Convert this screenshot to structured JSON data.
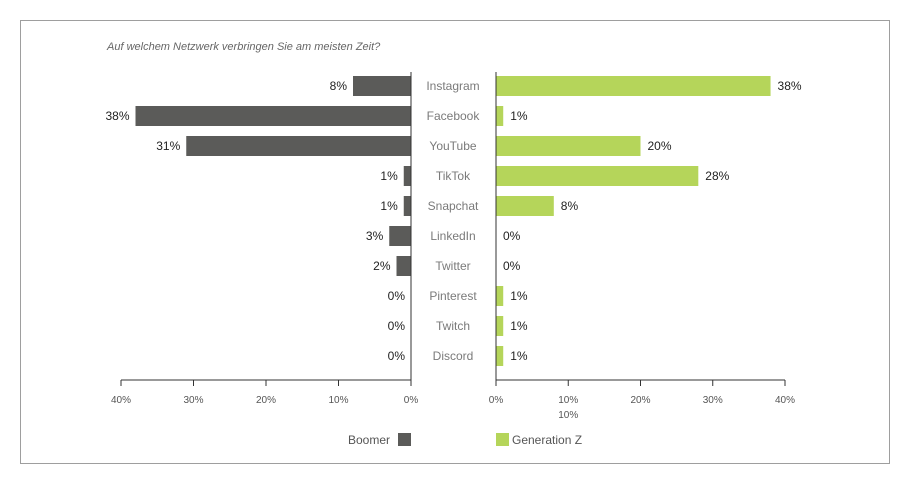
{
  "chart_data": {
    "type": "bar",
    "orientation": "horizontal",
    "layout": "butterfly",
    "title": "Auf welchem Netzwerk verbringen Sie am meisten Zeit?",
    "categories": [
      "Instagram",
      "Facebook",
      "YouTube",
      "TikTok",
      "Snapchat",
      "LinkedIn",
      "Twitter",
      "Pinterest",
      "Twitch",
      "Discord"
    ],
    "series": [
      {
        "name": "Boomer",
        "color": "#5b5b59",
        "side": "left",
        "values": [
          8,
          38,
          31,
          1,
          1,
          3,
          2,
          0,
          0,
          0
        ],
        "labels": [
          "8%",
          "38%",
          "31%",
          "1%",
          "1%",
          "3%",
          "2%",
          "0%",
          "0%",
          "0%"
        ]
      },
      {
        "name": "Generation Z",
        "color": "#b5d55a",
        "side": "right",
        "values": [
          38,
          1,
          20,
          28,
          8,
          0,
          0,
          1,
          1,
          1
        ],
        "labels": [
          "38%",
          "1%",
          "20%",
          "28%",
          "8%",
          "0%",
          "0%",
          "1%",
          "1%",
          "1%"
        ]
      }
    ],
    "xlim": [
      0,
      40
    ],
    "left_ticks": [
      "40%",
      "30%",
      "20%",
      "10%",
      "0%"
    ],
    "right_ticks": [
      "0%",
      "10%",
      "20%",
      "30%",
      "40%"
    ],
    "extra_tick_label": "10%",
    "legend_position": "bottom"
  }
}
